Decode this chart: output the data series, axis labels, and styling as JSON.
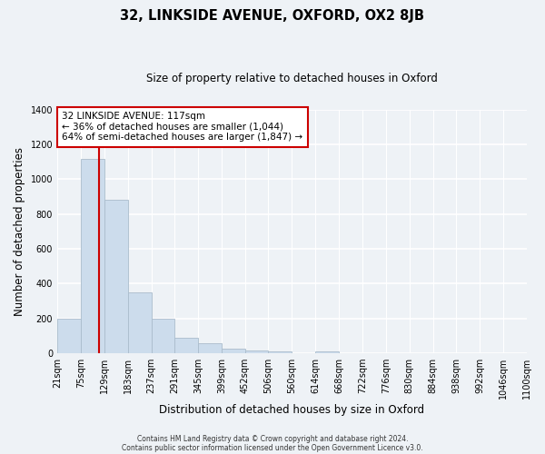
{
  "title": "32, LINKSIDE AVENUE, OXFORD, OX2 8JB",
  "subtitle": "Size of property relative to detached houses in Oxford",
  "xlabel": "Distribution of detached houses by size in Oxford",
  "ylabel": "Number of detached properties",
  "bar_color": "#ccdcec",
  "bar_edge_color": "#aabccc",
  "bins": [
    21,
    75,
    129,
    183,
    237,
    291,
    345,
    399,
    452,
    506,
    560,
    614,
    668,
    722,
    776,
    830,
    884,
    938,
    992,
    1046,
    1100
  ],
  "counts": [
    195,
    1115,
    880,
    350,
    195,
    90,
    55,
    25,
    15,
    10,
    0,
    10,
    0,
    0,
    0,
    0,
    0,
    0,
    0,
    0
  ],
  "tick_labels": [
    "21sqm",
    "75sqm",
    "129sqm",
    "183sqm",
    "237sqm",
    "291sqm",
    "345sqm",
    "399sqm",
    "452sqm",
    "506sqm",
    "560sqm",
    "614sqm",
    "668sqm",
    "722sqm",
    "776sqm",
    "830sqm",
    "884sqm",
    "938sqm",
    "992sqm",
    "1046sqm",
    "1100sqm"
  ],
  "vline_x": 117,
  "vline_color": "#cc0000",
  "annotation_title": "32 LINKSIDE AVENUE: 117sqm",
  "annotation_line1": "← 36% of detached houses are smaller (1,044)",
  "annotation_line2": "64% of semi-detached houses are larger (1,847) →",
  "annotation_box_color": "#ffffff",
  "annotation_border_color": "#cc0000",
  "ylim": [
    0,
    1400
  ],
  "yticks": [
    0,
    200,
    400,
    600,
    800,
    1000,
    1200,
    1400
  ],
  "footnote1": "Contains HM Land Registry data © Crown copyright and database right 2024.",
  "footnote2": "Contains public sector information licensed under the Open Government Licence v3.0.",
  "background_color": "#eef2f6",
  "plot_bg_color": "#eef2f6",
  "grid_color": "#ffffff"
}
